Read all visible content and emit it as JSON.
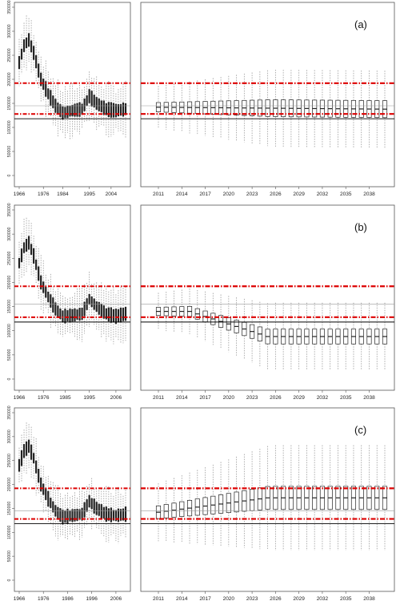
{
  "colors": {
    "box": "#222222",
    "whisker": "#9a9a9a",
    "reference_red": "#dd0000",
    "reference_line": "#000000",
    "mean_line": "#999999",
    "frame": "#555555"
  },
  "chart_data": [
    {
      "panel_label": "(a)",
      "type": "boxplot",
      "historical": {
        "x_tick_labels": [
          "1966",
          "1976",
          "1984",
          "1995",
          "2004"
        ],
        "y_tick_labels": [
          "0",
          "50000",
          "100000",
          "150000",
          "200000",
          "250000",
          "300000",
          "350000"
        ],
        "ylim": [
          0,
          350000
        ],
        "years": [
          1966,
          2010
        ],
        "median_profile": [
          [
            1966,
            235000
          ],
          [
            1968,
            270000
          ],
          [
            1970,
            282000
          ],
          [
            1972,
            255000
          ],
          [
            1975,
            200000
          ],
          [
            1978,
            170000
          ],
          [
            1981,
            145000
          ],
          [
            1984,
            130000
          ],
          [
            1988,
            135000
          ],
          [
            1992,
            138000
          ],
          [
            1995,
            165000
          ],
          [
            1998,
            150000
          ],
          [
            2002,
            138000
          ],
          [
            2006,
            135000
          ],
          [
            2010,
            138000
          ]
        ]
      },
      "projection": {
        "x_tick_labels": [
          "2011",
          "2014",
          "2017",
          "2020",
          "2023",
          "2026",
          "2029",
          "2032",
          "2035",
          "2038"
        ],
        "years": [
          2011,
          2040
        ],
        "trend": "flat",
        "median_start": 142000,
        "median_end": 138000,
        "spread": 80000
      },
      "reference_lines": {
        "upper_red": 192000,
        "lower_red": 128000,
        "solid_black": 118000,
        "solid_grey": 145000
      }
    },
    {
      "panel_label": "(b)",
      "type": "boxplot",
      "historical": {
        "x_tick_labels": [
          "1966",
          "1976",
          "1985",
          "1995",
          "2006"
        ],
        "y_tick_labels": [
          "0",
          "50000",
          "100000",
          "150000",
          "200000",
          "250000",
          "300000",
          "350000"
        ],
        "ylim": [
          0,
          350000
        ],
        "years": [
          1966,
          2010
        ],
        "median_profile": [
          [
            1966,
            240000
          ],
          [
            1968,
            272000
          ],
          [
            1970,
            282000
          ],
          [
            1972,
            255000
          ],
          [
            1975,
            200000
          ],
          [
            1978,
            170000
          ],
          [
            1981,
            145000
          ],
          [
            1984,
            130000
          ],
          [
            1988,
            132000
          ],
          [
            1992,
            135000
          ],
          [
            1995,
            165000
          ],
          [
            1998,
            150000
          ],
          [
            2002,
            135000
          ],
          [
            2006,
            130000
          ],
          [
            2010,
            135000
          ]
        ]
      },
      "projection": {
        "x_tick_labels": [
          "2011",
          "2014",
          "2017",
          "2020",
          "2023",
          "2026",
          "2029",
          "2032",
          "2035",
          "2038"
        ],
        "years": [
          2011,
          2040
        ],
        "trend": "decline",
        "median_start": 140000,
        "median_end": 88000,
        "spread": 70000
      },
      "reference_lines": {
        "upper_red": 192000,
        "lower_red": 128000,
        "solid_black": 118000,
        "solid_grey": 155000
      }
    },
    {
      "panel_label": "(c)",
      "type": "boxplot",
      "historical": {
        "x_tick_labels": [
          "1966",
          "1976",
          "1986",
          "1996",
          "2006"
        ],
        "y_tick_labels": [
          "0",
          "50000",
          "100000",
          "150000",
          "200000",
          "250000",
          "300000",
          "350000"
        ],
        "ylim": [
          0,
          350000
        ],
        "years": [
          1966,
          2010
        ],
        "median_profile": [
          [
            1966,
            240000
          ],
          [
            1968,
            270000
          ],
          [
            1970,
            280000
          ],
          [
            1972,
            255000
          ],
          [
            1975,
            200000
          ],
          [
            1978,
            170000
          ],
          [
            1981,
            145000
          ],
          [
            1984,
            132000
          ],
          [
            1988,
            135000
          ],
          [
            1992,
            138000
          ],
          [
            1995,
            165000
          ],
          [
            1998,
            150000
          ],
          [
            2002,
            138000
          ],
          [
            2006,
            135000
          ],
          [
            2010,
            138000
          ]
        ]
      },
      "projection": {
        "x_tick_labels": [
          "2011",
          "2014",
          "2017",
          "2020",
          "2023",
          "2026",
          "2029",
          "2032",
          "2035",
          "2038"
        ],
        "years": [
          2011,
          2040
        ],
        "trend": "rise",
        "median_start": 142000,
        "median_end": 172000,
        "spread": 110000
      },
      "reference_lines": {
        "upper_red": 192000,
        "lower_red": 128000,
        "solid_black": 118000,
        "solid_grey": 145000
      }
    }
  ]
}
